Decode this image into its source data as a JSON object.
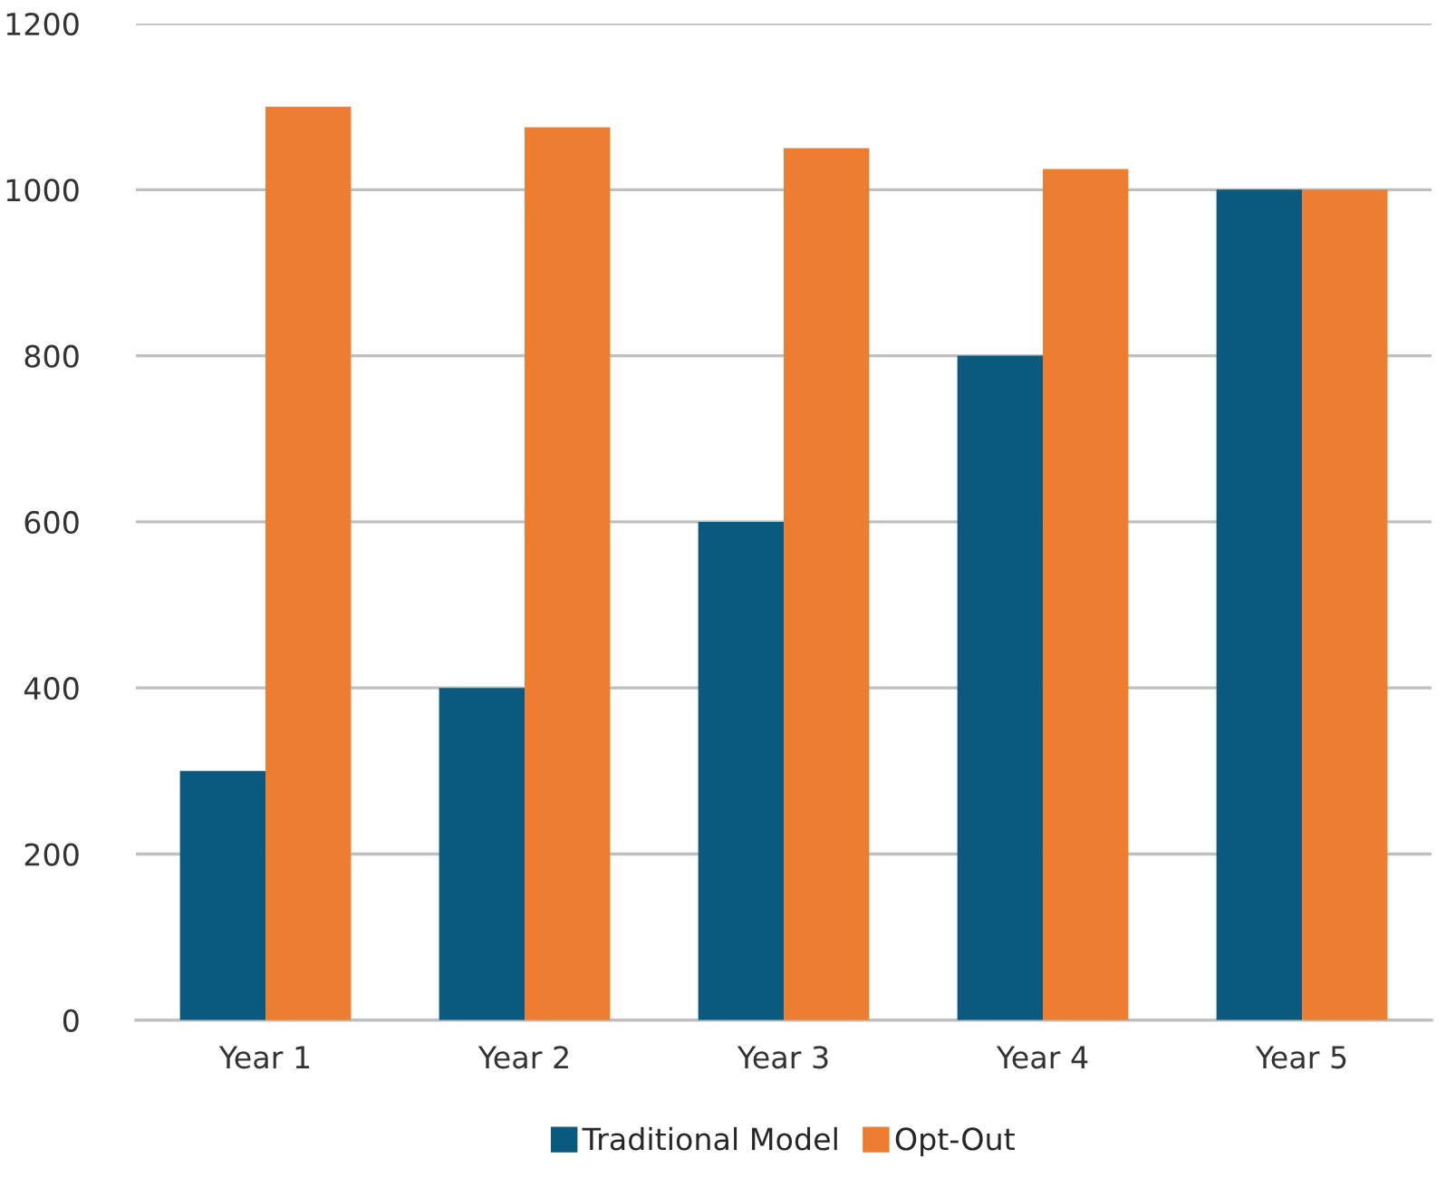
{
  "chart_data": {
    "type": "bar",
    "categories": [
      "Year 1",
      "Year 2",
      "Year 3",
      "Year 4",
      "Year 5"
    ],
    "series": [
      {
        "name": "Traditional Model",
        "color": "#0b5a7e",
        "values": [
          300,
          400,
          600,
          800,
          1000
        ]
      },
      {
        "name": "Opt-Out",
        "color": "#ed7d31",
        "values": [
          1100,
          1075,
          1050,
          1025,
          1000
        ]
      }
    ],
    "ylim": [
      0,
      1200
    ],
    "yticks": [
      0,
      200,
      400,
      600,
      800,
      1000,
      1200
    ],
    "grid": "y",
    "legend": "bottom"
  }
}
